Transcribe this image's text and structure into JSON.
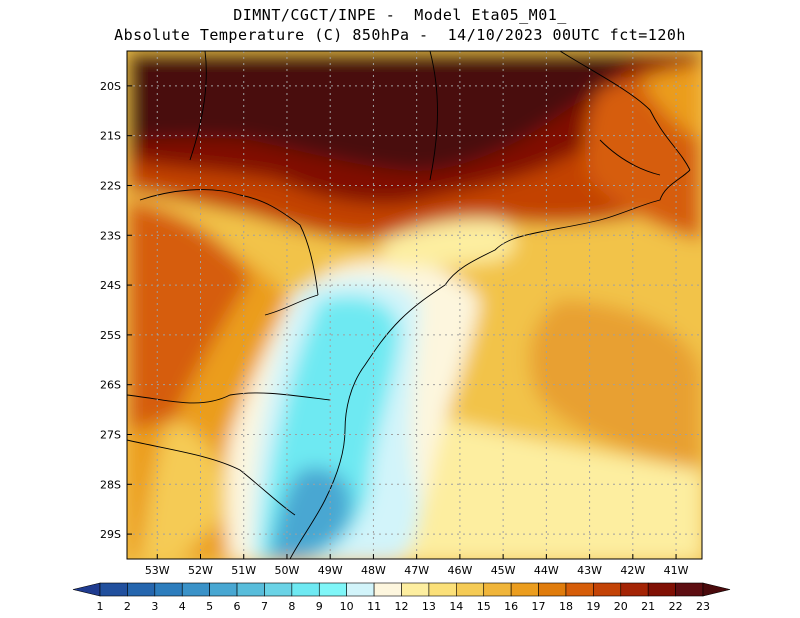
{
  "title": {
    "line1": "DIMNT/CGCT/INPE -  Model Eta05_M01_",
    "line2": "Absolute Temperature (C) 850hPa -  14/10/2023 00UTC fct=120h"
  },
  "map": {
    "lat_labels": [
      "20S",
      "21S",
      "22S",
      "23S",
      "24S",
      "25S",
      "26S",
      "27S",
      "28S",
      "29S"
    ],
    "lon_labels": [
      "53W",
      "52W",
      "51W",
      "50W",
      "49W",
      "48W",
      "47W",
      "46W",
      "45W",
      "44W",
      "43W",
      "42W",
      "41W"
    ],
    "lat_range": [
      -29.5,
      -19.3
    ],
    "lon_range": [
      -53.7,
      -40.4
    ],
    "grid": true
  },
  "colorbar": {
    "labels": [
      "1",
      "2",
      "3",
      "4",
      "5",
      "6",
      "7",
      "8",
      "9",
      "10",
      "11",
      "12",
      "13",
      "14",
      "15",
      "16",
      "17",
      "18",
      "19",
      "20",
      "21",
      "22",
      "23"
    ],
    "colors": [
      "#1f3b8f",
      "#21509e",
      "#2566ae",
      "#2d7dbd",
      "#3a92c8",
      "#48a7d2",
      "#58bddb",
      "#6ad3e6",
      "#6ee9f2",
      "#7ff6f8",
      "#d2f4fa",
      "#fdf6de",
      "#fdeea0",
      "#fbe079",
      "#f5cb55",
      "#f0b53a",
      "#eb9d1e",
      "#e07c0c",
      "#d65d09",
      "#c34306",
      "#a42405",
      "#801004",
      "#5e0e12",
      "#4a0a0c"
    ]
  }
}
